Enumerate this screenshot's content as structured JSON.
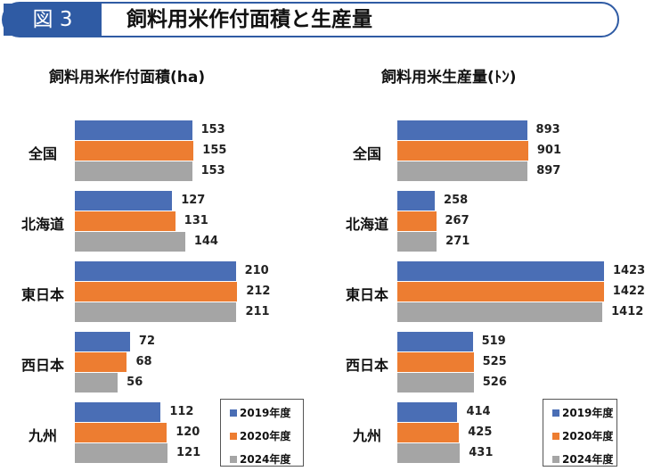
{
  "header": {
    "badge": "図 3",
    "title": "飼料用米作付面積と生産量"
  },
  "colors": {
    "accent": "#2f5ba4",
    "2019": "#4a6eb5",
    "2020": "#ed7d31",
    "2024": "#a5a5a5"
  },
  "chart_data": [
    {
      "type": "bar",
      "orientation": "horizontal",
      "title": "飼料用米作付面積(ha)",
      "categories": [
        "全国",
        "北海道",
        "東日本",
        "西日本",
        "九州"
      ],
      "series": [
        {
          "name": "2019年度",
          "values": [
            153,
            127,
            210,
            72,
            112
          ]
        },
        {
          "name": "2020年度",
          "values": [
            155,
            131,
            212,
            68,
            120
          ]
        },
        {
          "name": "2024年度",
          "values": [
            153,
            144,
            211,
            56,
            121
          ]
        }
      ],
      "legend": "bottom-right",
      "grid": false
    },
    {
      "type": "bar",
      "orientation": "horizontal",
      "title": "飼料用米生産量(ﾄﾝ)",
      "categories": [
        "全国",
        "北海道",
        "東日本",
        "西日本",
        "九州"
      ],
      "series": [
        {
          "name": "2019年度",
          "values": [
            893,
            258,
            1423,
            519,
            414
          ]
        },
        {
          "name": "2020年度",
          "values": [
            901,
            267,
            1422,
            525,
            425
          ]
        },
        {
          "name": "2024年度",
          "values": [
            897,
            271,
            1412,
            526,
            431
          ]
        }
      ],
      "legend": "bottom-right",
      "grid": false
    }
  ]
}
